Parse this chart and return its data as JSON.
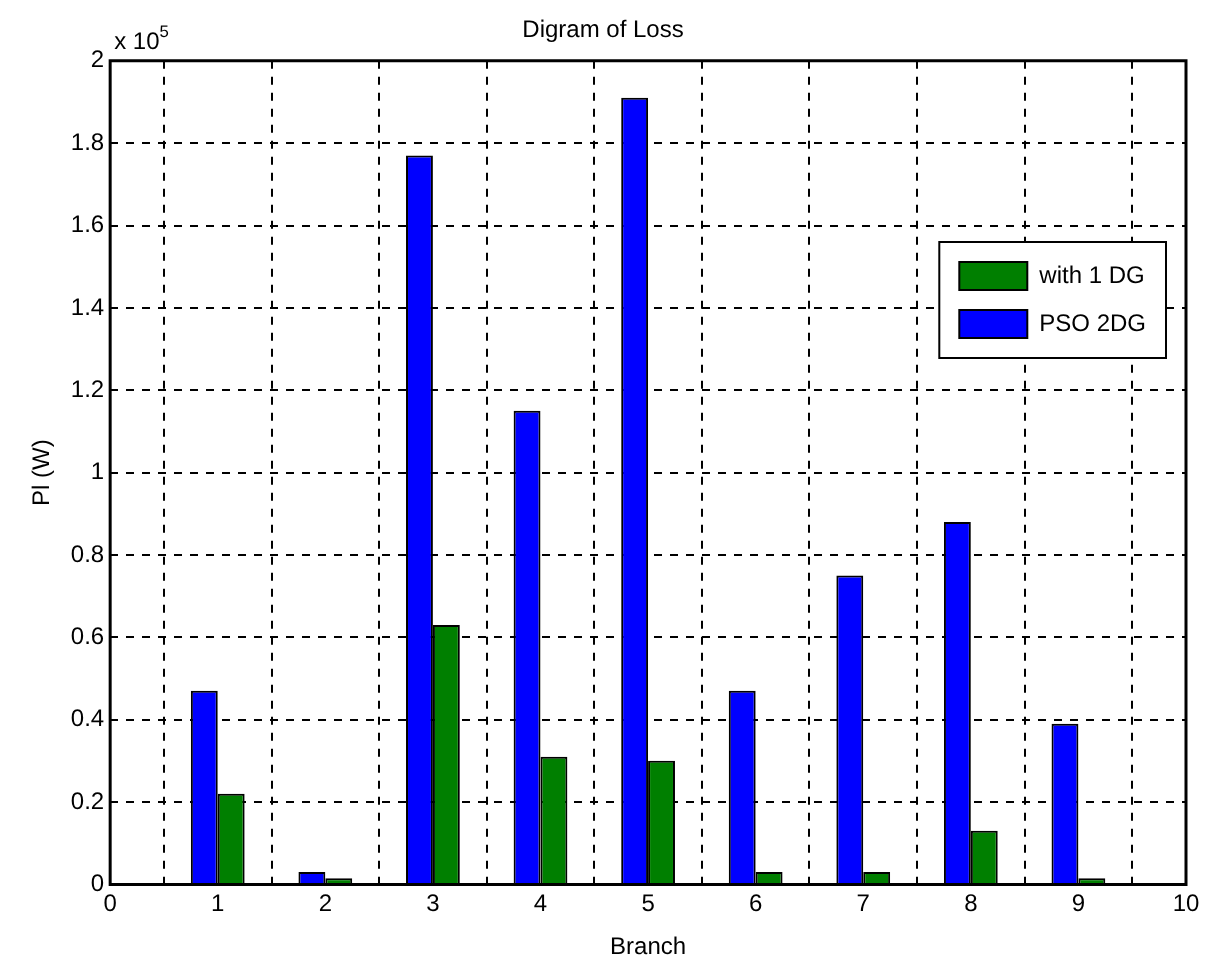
{
  "chart_data": {
    "type": "bar",
    "title": "Digram of Loss",
    "xlabel": "Branch",
    "ylabel": "Pl (W)",
    "annotations": [
      "x 10$^{5}$"
    ],
    "x": [
      1,
      2,
      3,
      4,
      5,
      6,
      7,
      8,
      9
    ],
    "series": [
      {
        "name": "PSO 2DG",
        "color": "#0000ff",
        "values": [
          0.47,
          0.03,
          1.77,
          1.15,
          1.91,
          0.47,
          0.75,
          0.88,
          0.39
        ]
      },
      {
        "name": "with 1 DG",
        "color": "#007f00",
        "values": [
          0.22,
          0.015,
          0.63,
          0.31,
          0.3,
          0.03,
          0.03,
          0.13,
          0.015
        ]
      }
    ],
    "xlim": [
      0,
      10
    ],
    "xticks": [
      0,
      1,
      2,
      3,
      4,
      5,
      6,
      7,
      8,
      9,
      10
    ],
    "ylim": [
      0,
      2
    ],
    "yticks": [
      0,
      0.2,
      0.4,
      0.6,
      0.8,
      1,
      1.2,
      1.4,
      1.6,
      1.8,
      2
    ],
    "grid": true,
    "legend": "top right"
  }
}
